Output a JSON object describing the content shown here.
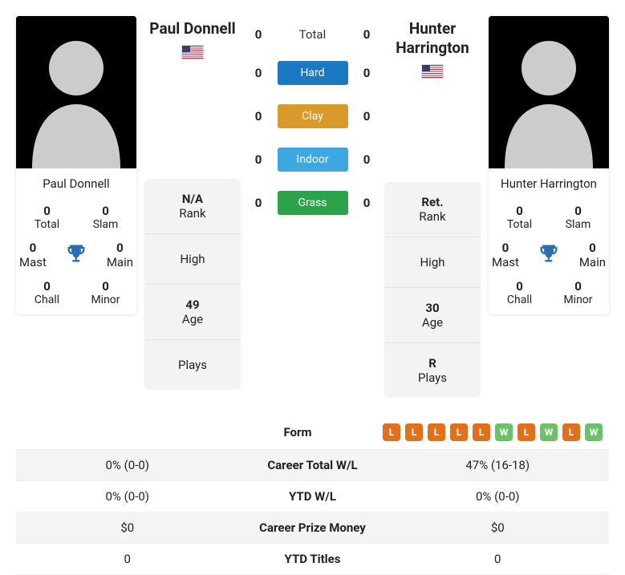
{
  "colors": {
    "chip_win": "#6dbf6a",
    "chip_loss": "#e0711a",
    "trophy": "#2b6fb0"
  },
  "players": {
    "left": {
      "name": "Paul Donnell",
      "titles": {
        "total": {
          "value": "0",
          "label": "Total"
        },
        "slam": {
          "value": "0",
          "label": "Slam"
        },
        "mast": {
          "value": "0",
          "label": "Mast"
        },
        "main": {
          "value": "0",
          "label": "Main"
        },
        "chall": {
          "value": "0",
          "label": "Chall"
        },
        "minor": {
          "value": "0",
          "label": "Minor"
        }
      },
      "rank": {
        "current": {
          "value": "N/A",
          "label": "Rank"
        },
        "high": {
          "value": "",
          "label": "High"
        },
        "age": {
          "value": "49",
          "label": "Age"
        },
        "plays": {
          "value": "",
          "label": "Plays"
        }
      }
    },
    "right": {
      "name": "Hunter Harrington",
      "titles": {
        "total": {
          "value": "0",
          "label": "Total"
        },
        "slam": {
          "value": "0",
          "label": "Slam"
        },
        "mast": {
          "value": "0",
          "label": "Mast"
        },
        "main": {
          "value": "0",
          "label": "Main"
        },
        "chall": {
          "value": "0",
          "label": "Chall"
        },
        "minor": {
          "value": "0",
          "label": "Minor"
        }
      },
      "rank": {
        "current": {
          "value": "Ret.",
          "label": "Rank"
        },
        "high": {
          "value": "",
          "label": "High"
        },
        "age": {
          "value": "30",
          "label": "Age"
        },
        "plays": {
          "value": "R",
          "label": "Plays"
        }
      }
    }
  },
  "h2h": {
    "rows": [
      {
        "left": "0",
        "label": "Total",
        "right": "0",
        "plain": true,
        "color": ""
      },
      {
        "left": "0",
        "label": "Hard",
        "right": "0",
        "plain": false,
        "color": "#1b78c2"
      },
      {
        "left": "0",
        "label": "Clay",
        "right": "0",
        "plain": false,
        "color": "#d99a2b"
      },
      {
        "left": "0",
        "label": "Indoor",
        "right": "0",
        "plain": false,
        "color": "#3da7e0"
      },
      {
        "left": "0",
        "label": "Grass",
        "right": "0",
        "plain": false,
        "color": "#2ca24a"
      }
    ]
  },
  "compare": {
    "form_label": "Form",
    "right_form": [
      "L",
      "L",
      "L",
      "L",
      "L",
      "W",
      "L",
      "W",
      "L",
      "W"
    ],
    "rows": [
      {
        "left": "0% (0-0)",
        "label": "Career Total W/L",
        "right": "47% (16-18)"
      },
      {
        "left": "0% (0-0)",
        "label": "YTD W/L",
        "right": "0% (0-0)"
      },
      {
        "left": "$0",
        "label": "Career Prize Money",
        "right": "$0"
      },
      {
        "left": "0",
        "label": "YTD Titles",
        "right": "0"
      }
    ]
  }
}
